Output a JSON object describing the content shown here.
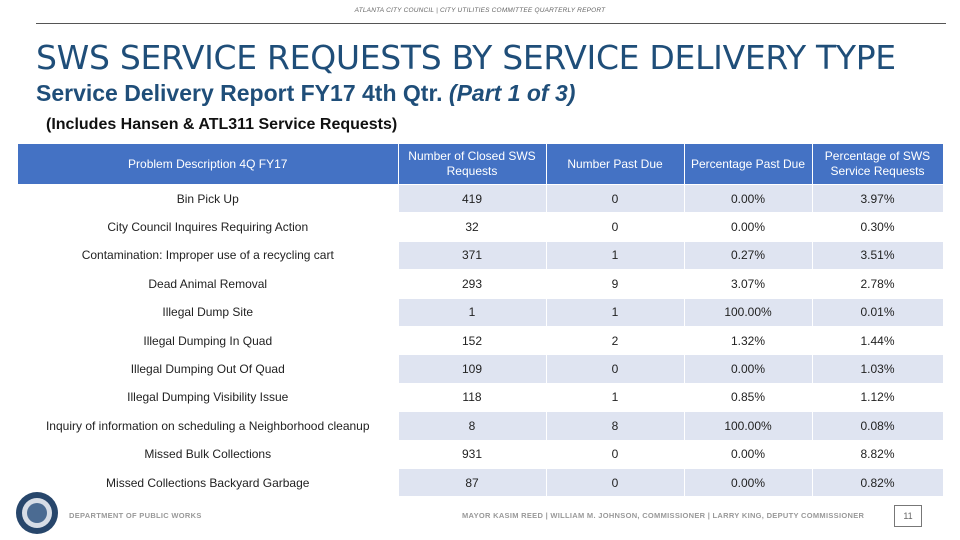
{
  "header": {
    "running_head": "ATLANTA CITY COUNCIL | CITY UTILITIES COMMITTEE QUARTERLY REPORT"
  },
  "title": "SWS SERVICE REQUESTS BY SERVICE DELIVERY TYPE",
  "subtitle": {
    "main": "Service Delivery Report FY17 4th Qtr.",
    "part": "(Part 1 of 3)"
  },
  "note": "(Includes Hansen & ATL311 Service Requests)",
  "table": {
    "columns": [
      "Problem Description 4Q FY17",
      "Number of Closed SWS Requests",
      "Number Past Due",
      "Percentage Past Due",
      "Percentage of SWS Service Requests"
    ],
    "rows": [
      [
        "Bin Pick Up",
        "419",
        "0",
        "0.00%",
        "3.97%"
      ],
      [
        "City Council Inquires Requiring Action",
        "32",
        "0",
        "0.00%",
        "0.30%"
      ],
      [
        "Contamination: Improper use of a recycling cart",
        "371",
        "1",
        "0.27%",
        "3.51%"
      ],
      [
        "Dead Animal Removal",
        "293",
        "9",
        "3.07%",
        "2.78%"
      ],
      [
        "Illegal Dump Site",
        "1",
        "1",
        "100.00%",
        "0.01%"
      ],
      [
        "Illegal Dumping In Quad",
        "152",
        "2",
        "1.32%",
        "1.44%"
      ],
      [
        "Illegal Dumping Out Of Quad",
        "109",
        "0",
        "0.00%",
        "1.03%"
      ],
      [
        "Illegal Dumping Visibility Issue",
        "118",
        "1",
        "0.85%",
        "1.12%"
      ],
      [
        "Inquiry of information on scheduling a Neighborhood cleanup",
        "8",
        "8",
        "100.00%",
        "0.08%"
      ],
      [
        "Missed Bulk Collections",
        "931",
        "0",
        "0.00%",
        "8.82%"
      ],
      [
        "Missed Collections Backyard Garbage",
        "87",
        "0",
        "0.00%",
        "0.82%"
      ]
    ]
  },
  "footer": {
    "department": "DEPARTMENT OF PUBLIC WORKS",
    "officials": "MAYOR KASIM REED  |  WILLIAM M. JOHNSON, COMMISSIONER  |  LARRY KING, DEPUTY COMMISSIONER",
    "page": "11"
  },
  "icons": {
    "seal": "city-seal-icon"
  },
  "colors": {
    "title": "#1f4e79",
    "header_fill": "#4472c4",
    "row_band": "#dfe4f1"
  }
}
